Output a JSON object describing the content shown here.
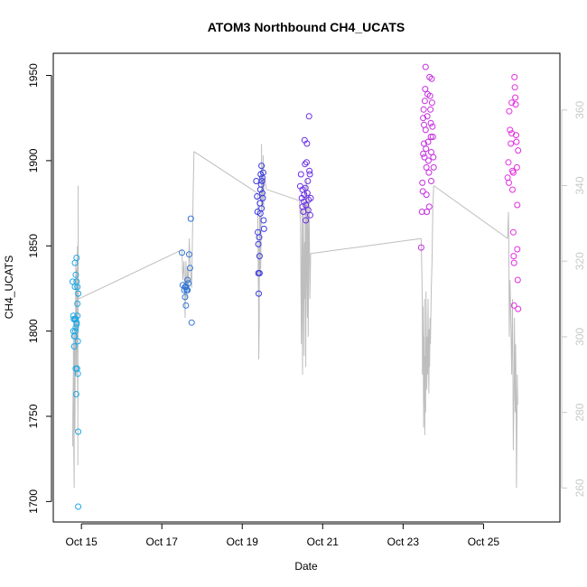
{
  "chart_data": {
    "type": "scatter",
    "title": "ATOM3 Northbound CH4_UCATS",
    "xlabel": "Date",
    "ylabel": "CH4_UCATS",
    "y2label": "",
    "xlim": [
      14.3,
      26.9
    ],
    "ylim": [
      1688,
      1963
    ],
    "y2lim": [
      251,
      375
    ],
    "x_ticks": [
      {
        "value": 15,
        "label": "Oct 15"
      },
      {
        "value": 17,
        "label": "Oct 17"
      },
      {
        "value": 19,
        "label": "Oct 19"
      },
      {
        "value": 21,
        "label": "Oct 21"
      },
      {
        "value": 23,
        "label": "Oct 23"
      },
      {
        "value": 25,
        "label": "Oct 25"
      }
    ],
    "y_ticks": [
      1700,
      1750,
      1800,
      1850,
      1900,
      1950
    ],
    "y2_ticks": [
      260,
      280,
      300,
      320,
      340,
      360
    ],
    "grid": false,
    "colors": {
      "line": "#bebebe",
      "right_axis": "#c8c8c8",
      "flight1": "#1ea8e6",
      "flight2": "#2f74d6",
      "flight3": "#3a3ae0",
      "flight4": "#6a2ee6",
      "flight5": "#c62ee0",
      "flight6": "#e22ee0"
    },
    "series": [
      {
        "color": "#1ea8e6",
        "points": [
          [
            14.78,
            1829
          ],
          [
            14.8,
            1809
          ],
          [
            14.8,
            1800
          ],
          [
            14.81,
            1807
          ],
          [
            14.82,
            1797
          ],
          [
            14.82,
            1791
          ],
          [
            14.84,
            1826
          ],
          [
            14.84,
            1840
          ],
          [
            14.84,
            1807
          ],
          [
            14.85,
            1800
          ],
          [
            14.86,
            1802
          ],
          [
            14.86,
            1807
          ],
          [
            14.86,
            1778
          ],
          [
            14.87,
            1763
          ],
          [
            14.88,
            1843
          ],
          [
            14.88,
            1829
          ],
          [
            14.88,
            1804
          ],
          [
            14.88,
            1805
          ],
          [
            14.89,
            1778
          ],
          [
            14.9,
            1826
          ],
          [
            14.9,
            1816
          ],
          [
            14.9,
            1809
          ],
          [
            14.91,
            1794
          ],
          [
            14.91,
            1775
          ],
          [
            14.92,
            1822
          ],
          [
            14.92,
            1741
          ],
          [
            14.92,
            1697
          ],
          [
            14.86,
            1833
          ],
          [
            14.83,
            1797
          ]
        ]
      },
      {
        "color": "#2f74d6",
        "points": [
          [
            17.5,
            1846
          ],
          [
            17.52,
            1827
          ],
          [
            17.56,
            1824
          ],
          [
            17.58,
            1820
          ],
          [
            17.6,
            1826
          ],
          [
            17.6,
            1815
          ],
          [
            17.62,
            1824
          ],
          [
            17.64,
            1830
          ],
          [
            17.66,
            1828
          ],
          [
            17.68,
            1845
          ],
          [
            17.7,
            1837
          ],
          [
            17.72,
            1866
          ],
          [
            17.74,
            1805
          ],
          [
            17.58,
            1826
          ],
          [
            17.64,
            1824
          ]
        ]
      },
      {
        "color": "#3a3ae0",
        "points": [
          [
            19.35,
            1888
          ],
          [
            19.37,
            1879
          ],
          [
            19.38,
            1870
          ],
          [
            19.39,
            1858
          ],
          [
            19.4,
            1851
          ],
          [
            19.4,
            1834
          ],
          [
            19.41,
            1822
          ],
          [
            19.42,
            1855
          ],
          [
            19.43,
            1844
          ],
          [
            19.43,
            1834
          ],
          [
            19.44,
            1875
          ],
          [
            19.45,
            1883
          ],
          [
            19.46,
            1892
          ],
          [
            19.47,
            1886
          ],
          [
            19.48,
            1897
          ],
          [
            19.49,
            1888
          ],
          [
            19.5,
            1890
          ],
          [
            19.51,
            1878
          ],
          [
            19.52,
            1893
          ],
          [
            19.53,
            1865
          ],
          [
            19.54,
            1860
          ],
          [
            19.45,
            1869
          ],
          [
            19.48,
            1872
          ],
          [
            19.5,
            1881
          ]
        ]
      },
      {
        "color": "#6a2ee6",
        "points": [
          [
            20.44,
            1885
          ],
          [
            20.46,
            1892
          ],
          [
            20.48,
            1878
          ],
          [
            20.5,
            1883
          ],
          [
            20.5,
            1873
          ],
          [
            20.52,
            1870
          ],
          [
            20.53,
            1876
          ],
          [
            20.54,
            1880
          ],
          [
            20.55,
            1912
          ],
          [
            20.56,
            1898
          ],
          [
            20.57,
            1884
          ],
          [
            20.58,
            1874
          ],
          [
            20.58,
            1865
          ],
          [
            20.6,
            1899
          ],
          [
            20.61,
            1910
          ],
          [
            20.62,
            1881
          ],
          [
            20.63,
            1888
          ],
          [
            20.64,
            1871
          ],
          [
            20.65,
            1877
          ],
          [
            20.66,
            1926
          ],
          [
            20.67,
            1894
          ],
          [
            20.68,
            1892
          ],
          [
            20.69,
            1868
          ],
          [
            20.7,
            1878
          ]
        ]
      },
      {
        "color": "#c62ee0",
        "points": [
          [
            23.45,
            1849
          ],
          [
            23.47,
            1870
          ],
          [
            23.48,
            1887
          ],
          [
            23.49,
            1882
          ],
          [
            23.5,
            1904
          ],
          [
            23.5,
            1925
          ],
          [
            23.51,
            1930
          ],
          [
            23.52,
            1921
          ],
          [
            23.52,
            1910
          ],
          [
            23.53,
            1902
          ],
          [
            23.54,
            1935
          ],
          [
            23.55,
            1942
          ],
          [
            23.56,
            1955
          ],
          [
            23.56,
            1918
          ],
          [
            23.57,
            1907
          ],
          [
            23.58,
            1896
          ],
          [
            23.58,
            1880
          ],
          [
            23.59,
            1870
          ],
          [
            23.6,
            1926
          ],
          [
            23.61,
            1939
          ],
          [
            23.62,
            1911
          ],
          [
            23.63,
            1900
          ],
          [
            23.64,
            1893
          ],
          [
            23.65,
            1873
          ],
          [
            23.66,
            1949
          ],
          [
            23.67,
            1938
          ],
          [
            23.68,
            1930
          ],
          [
            23.69,
            1922
          ],
          [
            23.69,
            1914
          ],
          [
            23.7,
            1905
          ],
          [
            23.7,
            1888
          ],
          [
            23.71,
            1948
          ],
          [
            23.72,
            1934
          ],
          [
            23.73,
            1920
          ],
          [
            23.74,
            1914
          ],
          [
            23.75,
            1902
          ],
          [
            23.76,
            1896
          ]
        ]
      },
      {
        "color": "#e22ee0",
        "points": [
          [
            25.6,
            1890
          ],
          [
            25.62,
            1899
          ],
          [
            25.63,
            1887
          ],
          [
            25.64,
            1929
          ],
          [
            25.66,
            1918
          ],
          [
            25.68,
            1910
          ],
          [
            25.7,
            1934
          ],
          [
            25.7,
            1916
          ],
          [
            25.72,
            1894
          ],
          [
            25.72,
            1883
          ],
          [
            25.74,
            1858
          ],
          [
            25.75,
            1844
          ],
          [
            25.76,
            1840
          ],
          [
            25.76,
            1815
          ],
          [
            25.77,
            1949
          ],
          [
            25.78,
            1943
          ],
          [
            25.79,
            1937
          ],
          [
            25.8,
            1933
          ],
          [
            25.81,
            1915
          ],
          [
            25.82,
            1911
          ],
          [
            25.83,
            1896
          ],
          [
            25.84,
            1874
          ],
          [
            25.84,
            1848
          ],
          [
            25.85,
            1830
          ],
          [
            25.86,
            1813
          ],
          [
            25.86,
            1906
          ],
          [
            25.74,
            1893
          ]
        ]
      }
    ],
    "line_y2": [
      [
        14.78,
        271
      ],
      [
        14.79,
        282
      ],
      [
        14.8,
        292
      ],
      [
        14.8,
        301
      ],
      [
        14.81,
        294
      ],
      [
        14.81,
        270
      ],
      [
        14.82,
        260
      ],
      [
        14.82,
        278
      ],
      [
        14.83,
        298
      ],
      [
        14.83,
        305
      ],
      [
        14.84,
        290
      ],
      [
        14.84,
        275
      ],
      [
        14.85,
        305
      ],
      [
        14.85,
        296
      ],
      [
        14.86,
        315
      ],
      [
        14.86,
        320
      ],
      [
        14.87,
        302
      ],
      [
        14.87,
        290
      ],
      [
        14.88,
        312
      ],
      [
        14.88,
        318
      ],
      [
        14.89,
        296
      ],
      [
        14.89,
        310
      ],
      [
        14.9,
        324
      ],
      [
        14.9,
        292
      ],
      [
        14.91,
        280
      ],
      [
        14.91,
        266
      ],
      [
        14.92,
        340
      ],
      [
        14.92,
        318
      ],
      [
        14.93,
        310
      ],
      [
        17.5,
        323
      ],
      [
        17.52,
        315
      ],
      [
        17.55,
        320
      ],
      [
        17.56,
        317
      ],
      [
        17.58,
        305
      ],
      [
        17.6,
        320
      ],
      [
        17.62,
        310
      ],
      [
        17.64,
        318
      ],
      [
        17.66,
        312
      ],
      [
        17.68,
        326
      ],
      [
        17.7,
        320
      ],
      [
        17.74,
        313
      ],
      [
        17.78,
        338
      ],
      [
        17.8,
        349
      ],
      [
        19.38,
        338
      ],
      [
        19.4,
        313
      ],
      [
        19.4,
        324
      ],
      [
        19.41,
        294
      ],
      [
        19.42,
        303
      ],
      [
        19.43,
        332
      ],
      [
        19.44,
        316
      ],
      [
        19.45,
        332
      ],
      [
        19.46,
        318
      ],
      [
        19.47,
        330
      ],
      [
        19.48,
        341
      ],
      [
        19.48,
        351
      ],
      [
        19.49,
        333
      ],
      [
        19.5,
        345
      ],
      [
        19.51,
        336
      ],
      [
        19.52,
        348
      ],
      [
        19.53,
        334
      ],
      [
        19.54,
        341
      ],
      [
        19.56,
        342
      ],
      [
        19.6,
        339
      ],
      [
        20.42,
        336
      ],
      [
        20.45,
        330
      ],
      [
        20.46,
        312
      ],
      [
        20.47,
        298
      ],
      [
        20.48,
        320
      ],
      [
        20.49,
        334
      ],
      [
        20.5,
        290
      ],
      [
        20.51,
        310
      ],
      [
        20.52,
        336
      ],
      [
        20.53,
        315
      ],
      [
        20.54,
        295
      ],
      [
        20.55,
        325
      ],
      [
        20.56,
        310
      ],
      [
        20.57,
        340
      ],
      [
        20.58,
        292
      ],
      [
        20.59,
        330
      ],
      [
        20.6,
        342
      ],
      [
        20.61,
        315
      ],
      [
        20.62,
        305
      ],
      [
        20.63,
        336
      ],
      [
        20.64,
        300
      ],
      [
        20.65,
        320
      ],
      [
        20.66,
        338
      ],
      [
        20.67,
        326
      ],
      [
        20.68,
        310
      ],
      [
        20.7,
        322
      ],
      [
        23.45,
        326
      ],
      [
        23.47,
        315
      ],
      [
        23.48,
        305
      ],
      [
        23.48,
        290
      ],
      [
        23.49,
        308
      ],
      [
        23.5,
        298
      ],
      [
        23.51,
        276
      ],
      [
        23.52,
        300
      ],
      [
        23.52,
        283
      ],
      [
        23.53,
        310
      ],
      [
        23.54,
        274
      ],
      [
        23.55,
        295
      ],
      [
        23.56,
        280
      ],
      [
        23.57,
        312
      ],
      [
        23.58,
        298
      ],
      [
        23.59,
        286
      ],
      [
        23.6,
        300
      ],
      [
        23.61,
        290
      ],
      [
        23.62,
        310
      ],
      [
        23.63,
        295
      ],
      [
        23.64,
        285
      ],
      [
        23.65,
        302
      ],
      [
        23.66,
        292
      ],
      [
        23.67,
        305
      ],
      [
        23.68,
        298
      ],
      [
        23.7,
        312
      ],
      [
        23.72,
        320
      ],
      [
        23.74,
        334
      ],
      [
        23.76,
        340
      ],
      [
        25.6,
        326
      ],
      [
        25.62,
        333
      ],
      [
        25.63,
        322
      ],
      [
        25.64,
        300
      ],
      [
        25.66,
        315
      ],
      [
        25.68,
        304
      ],
      [
        25.7,
        290
      ],
      [
        25.72,
        310
      ],
      [
        25.73,
        295
      ],
      [
        25.74,
        270
      ],
      [
        25.76,
        285
      ],
      [
        25.77,
        305
      ],
      [
        25.78,
        290
      ],
      [
        25.79,
        280
      ],
      [
        25.8,
        298
      ],
      [
        25.81,
        283
      ],
      [
        25.82,
        260
      ],
      [
        25.83,
        275
      ],
      [
        25.84,
        290
      ],
      [
        25.85,
        282
      ]
    ],
    "line_y2_trend": [
      [
        14.93,
        310
      ],
      [
        17.5,
        323
      ],
      [
        17.8,
        349
      ],
      [
        19.38,
        338
      ],
      [
        19.6,
        339
      ],
      [
        20.42,
        336
      ],
      [
        20.7,
        322
      ],
      [
        23.45,
        326
      ],
      [
        23.76,
        340
      ],
      [
        25.6,
        326
      ]
    ]
  }
}
